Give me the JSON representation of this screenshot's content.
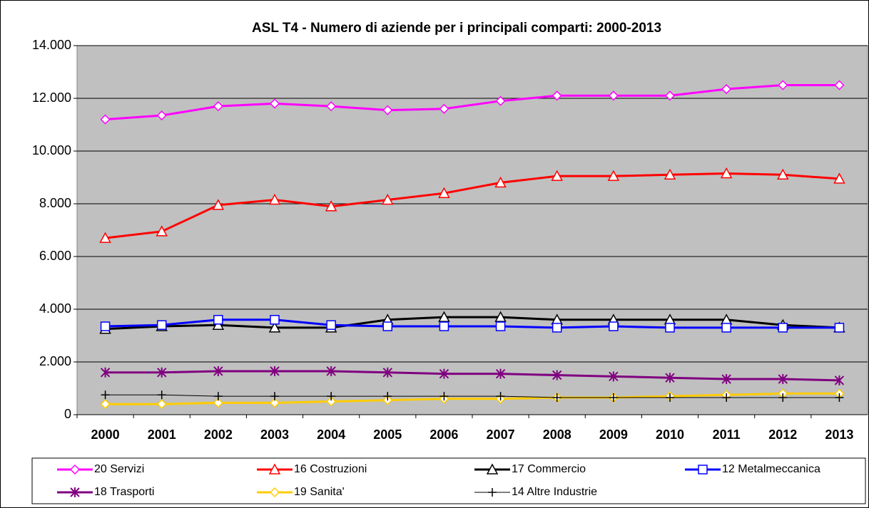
{
  "chart_data": {
    "type": "line",
    "title": "ASL T4 - Numero di aziende per i principali comparti: 2000-2013",
    "categories": [
      "2000",
      "2001",
      "2002",
      "2003",
      "2004",
      "2005",
      "2006",
      "2007",
      "2008",
      "2009",
      "2010",
      "2011",
      "2012",
      "2013"
    ],
    "ylim": [
      0,
      14000
    ],
    "yticks": [
      0,
      {
        "value": 2000,
        "label": "2.000"
      },
      {
        "value": 4000,
        "label": "4.000"
      },
      {
        "value": 6000,
        "label": "6.000"
      },
      {
        "value": 8000,
        "label": "8.000"
      },
      {
        "value": 10000,
        "label": "10.000"
      },
      {
        "value": 12000,
        "label": "12.000"
      },
      {
        "value": 14000,
        "label": "14.000"
      }
    ],
    "grid": true,
    "legend": "bottom",
    "series": [
      {
        "name": "20 Servizi",
        "color": "#ff00ff",
        "marker": "diamond",
        "values": [
          11200,
          11350,
          11700,
          11800,
          11700,
          11550,
          11600,
          11900,
          12100,
          12100,
          12100,
          12350,
          12500,
          12500
        ]
      },
      {
        "name": "16 Costruzioni",
        "color": "#ff0000",
        "marker": "triangle",
        "values": [
          6700,
          6950,
          7950,
          8150,
          7900,
          8150,
          8400,
          8800,
          9050,
          9050,
          9100,
          9150,
          9100,
          8950
        ]
      },
      {
        "name": "17 Commercio",
        "color": "#000000",
        "marker": "triangle",
        "values": [
          3250,
          3350,
          3400,
          3300,
          3300,
          3600,
          3700,
          3700,
          3600,
          3600,
          3600,
          3600,
          3400,
          3300
        ]
      },
      {
        "name": "12 Metalmeccanica",
        "color": "#0000ff",
        "marker": "square",
        "values": [
          3350,
          3400,
          3600,
          3600,
          3400,
          3350,
          3350,
          3350,
          3300,
          3350,
          3300,
          3300,
          3300,
          3300
        ]
      },
      {
        "name": "18 Trasporti",
        "color": "#800080",
        "marker": "star",
        "values": [
          1600,
          1600,
          1650,
          1650,
          1650,
          1600,
          1550,
          1550,
          1500,
          1450,
          1400,
          1350,
          1350,
          1300
        ]
      },
      {
        "name": "19 Sanita'",
        "color": "#ffcc00",
        "marker": "diamond",
        "values": [
          400,
          400,
          450,
          450,
          500,
          550,
          600,
          600,
          650,
          650,
          700,
          750,
          800,
          800
        ]
      },
      {
        "name": "14 Altre Industrie",
        "color": "#000000",
        "marker": "plus",
        "values": [
          750,
          750,
          700,
          700,
          700,
          700,
          700,
          700,
          650,
          650,
          650,
          650,
          650,
          650
        ]
      }
    ]
  }
}
